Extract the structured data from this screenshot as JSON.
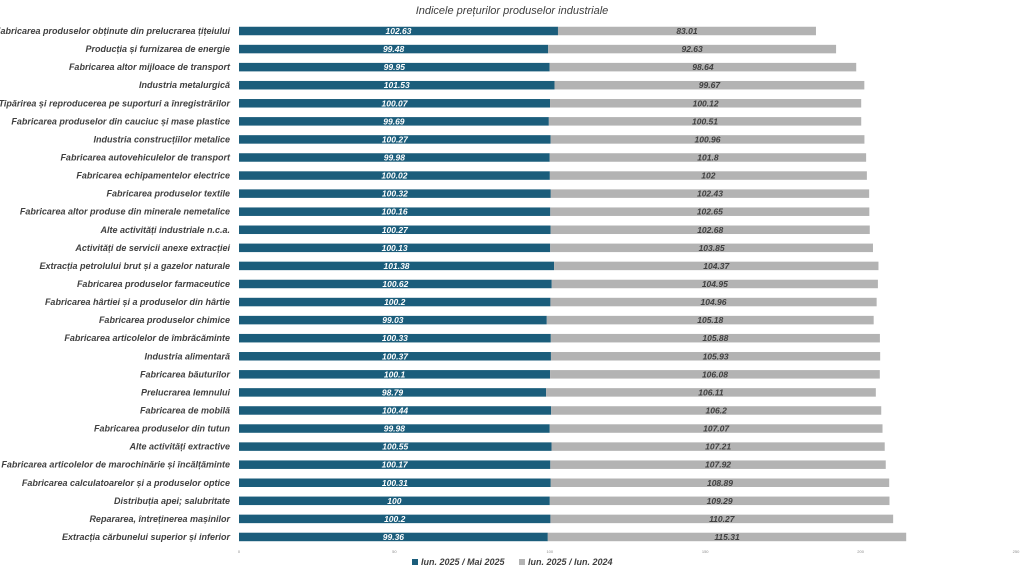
{
  "chart_data": {
    "type": "bar",
    "orientation": "horizontal",
    "stacked": true,
    "title": "Indicele prețurilor produselor industriale",
    "categories": [
      "Fabricarea produselor  obținute din prelucrarea țițeiului",
      "Producția și furnizarea de energie",
      "Fabricarea altor mijloace de transport",
      "Industria metalurgică",
      "Tipărirea și reproducerea pe suporturi a înregistrărilor",
      "Fabricarea produselor din cauciuc și mase plastice",
      "Industria construcțiilor metalice",
      "Fabricarea autovehiculelor de transport",
      "Fabricarea echipamentelor electrice",
      "Fabricarea produselor textile",
      "Fabricarea altor produse din minerale nemetalice",
      "Alte activități industriale n.c.a.",
      "Activități de servicii anexe extracției",
      "Extracția petrolului brut și a gazelor naturale",
      "Fabricarea produselor farmaceutice",
      "Fabricarea hârtiei și a produselor din hârtie",
      "Fabricarea  produselor chimice",
      "Fabricarea articolelor de îmbrăcăminte",
      "Industria alimentară",
      "Fabricarea băuturilor",
      "Prelucrarea lemnului",
      "Fabricarea de mobilă",
      "Fabricarea produselor din tutun",
      "Alte activități extractive",
      "Fabricarea articolelor de marochinărie și încălțăminte",
      "Fabricarea calculatoarelor și a produselor optice",
      "Distribuția apei; salubritate",
      "Repararea, întreținerea mașinilor",
      "Extracția cărbunelui superior și inferior"
    ],
    "series": [
      {
        "name": "Iun. 2025 / Mai 2025",
        "color": "#1b5d7b",
        "label_color": "#ffffff",
        "values": [
          102.63,
          99.48,
          99.95,
          101.53,
          100.07,
          99.69,
          100.27,
          99.98,
          100.02,
          100.32,
          100.16,
          100.27,
          100.13,
          101.38,
          100.62,
          100.2,
          99.03,
          100.33,
          100.37,
          100.1,
          98.79,
          100.44,
          99.98,
          100.55,
          100.17,
          100.31,
          100,
          100.2,
          99.36
        ],
        "labels": [
          "102.63",
          "99.48",
          "99.95",
          "101.53",
          "100.07",
          "99.69",
          "100.27",
          "99.98",
          "100.02",
          "100.32",
          "100.16",
          "100.27",
          "100.13",
          "101.38",
          "100.62",
          "100.2",
          "99.03",
          "100.33",
          "100.37",
          "100.1",
          "98.79",
          "100.44",
          "99.98",
          "100.55",
          "100.17",
          "100.31",
          "100",
          "100.2",
          "99.36"
        ]
      },
      {
        "name": "Iun. 2025 / Iun. 2024",
        "color": "#b3b3b3",
        "label_color": "#404040",
        "values": [
          83.01,
          92.63,
          98.64,
          99.67,
          100.12,
          100.51,
          100.96,
          101.8,
          102,
          102.43,
          102.65,
          102.68,
          103.85,
          104.37,
          104.95,
          104.96,
          105.18,
          105.88,
          105.93,
          106.08,
          106.11,
          106.2,
          107.07,
          107.21,
          107.92,
          108.89,
          109.29,
          110.27,
          115.31
        ],
        "labels": [
          "83.01",
          "92.63",
          "98.64",
          "99.67",
          "100.12",
          "100.51",
          "100.96",
          "101.8",
          "102",
          "102.43",
          "102.65",
          "102.68",
          "103.85",
          "104.37",
          "104.95",
          "104.96",
          "105.18",
          "105.88",
          "105.93",
          "106.08",
          "106.11",
          "106.2",
          "107.07",
          "107.21",
          "107.92",
          "108.89",
          "109.29",
          "110.27",
          "115.31"
        ]
      }
    ],
    "xlim": [
      0,
      250
    ],
    "xticks": [
      "0",
      "50",
      "100",
      "150",
      "200",
      "250"
    ],
    "grid": false,
    "legend_position": "bottom"
  }
}
